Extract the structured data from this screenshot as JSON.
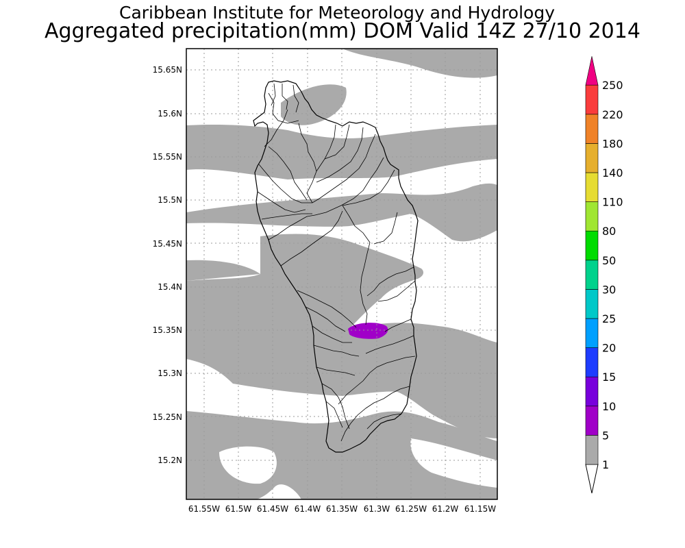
{
  "titles": {
    "line1": "Caribbean Institute for Meteorology and Hydrology",
    "line2": "Aggregated precipitation(mm) DOM Valid 14Z 27/10 2014"
  },
  "map": {
    "region": "Dominica",
    "lat_range": [
      15.155,
      15.68
    ],
    "lon_range": [
      -61.575,
      -61.125
    ],
    "lat_ticks": [
      "15.2N",
      "15.25N",
      "15.3N",
      "15.35N",
      "15.4N",
      "15.45N",
      "15.5N",
      "15.55N",
      "15.6N",
      "15.65N"
    ],
    "lon_ticks": [
      "61.55W",
      "61.5W",
      "61.45W",
      "61.4W",
      "61.35W",
      "61.3W",
      "61.25W",
      "61.2W",
      "61.15W"
    ],
    "grid": true,
    "shading_colors": {
      "1-5": "#aaaaaa",
      "5-10": "#a000c8"
    }
  },
  "colorbar": {
    "levels": [
      {
        "label": "1",
        "color": "#ffffff"
      },
      {
        "label": "5",
        "color": "#aaaaaa"
      },
      {
        "label": "10",
        "color": "#a000c8"
      },
      {
        "label": "15",
        "color": "#7800dc"
      },
      {
        "label": "20",
        "color": "#1e3cff"
      },
      {
        "label": "25",
        "color": "#00a0ff"
      },
      {
        "label": "30",
        "color": "#00c8c8"
      },
      {
        "label": "50",
        "color": "#00d28c"
      },
      {
        "label": "80",
        "color": "#00dc00"
      },
      {
        "label": "110",
        "color": "#a0e632"
      },
      {
        "label": "140",
        "color": "#e6dc32"
      },
      {
        "label": "180",
        "color": "#e6af2d"
      },
      {
        "label": "220",
        "color": "#f08228"
      },
      {
        "label": "250",
        "color": "#fa3c3c"
      }
    ],
    "top_color": "#f00082"
  }
}
